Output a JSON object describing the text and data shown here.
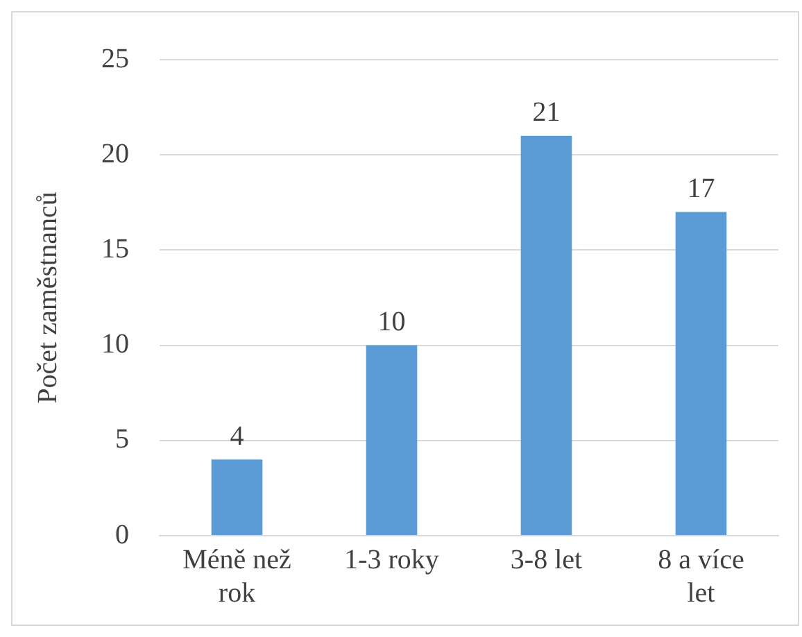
{
  "chart_data": {
    "type": "bar",
    "ylabel": "Počet zaměstnanců",
    "categories": [
      "Méně než rok",
      "1-3 roky",
      "3-8 let",
      "8 a více let"
    ],
    "values": [
      4,
      10,
      21,
      17
    ],
    "color": "#5b9bd5",
    "ylim": [
      0,
      25
    ],
    "yticks": [
      0,
      5,
      10,
      15,
      20,
      25
    ],
    "grid": "y",
    "data_labels": true
  }
}
